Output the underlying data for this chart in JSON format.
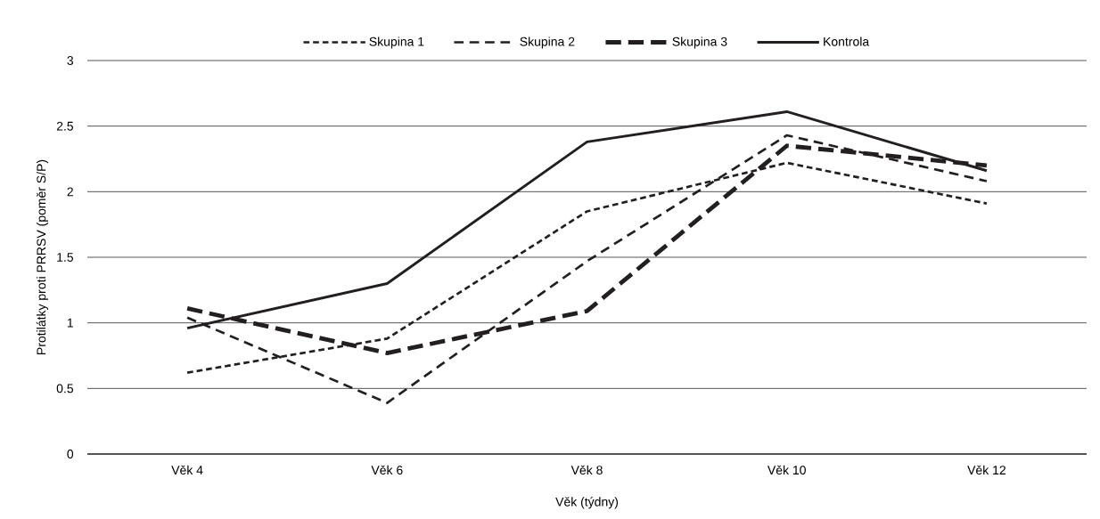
{
  "chart_data": {
    "type": "line",
    "xlabel": "Věk (týdny)",
    "ylabel": "Protilátky proti PRRSV (poměr S/P)",
    "categories": [
      "Věk 4",
      "Věk 6",
      "Věk 8",
      "Věk 10",
      "Věk 12"
    ],
    "series": [
      {
        "name": "Skupina 1",
        "color": "#231f20",
        "line_style": "dotted",
        "values": [
          0.62,
          0.88,
          1.85,
          2.22,
          1.91
        ]
      },
      {
        "name": "Skupina 2",
        "color": "#231f20",
        "line_style": "dashed",
        "values": [
          1.04,
          0.39,
          1.47,
          2.43,
          2.08
        ]
      },
      {
        "name": "Skupina 3",
        "color": "#231f20",
        "line_style": "dashed",
        "values": [
          1.11,
          0.77,
          1.09,
          2.35,
          2.2
        ]
      },
      {
        "name": "Kontrola",
        "color": "#231f20",
        "line_style": "solid",
        "values": [
          0.96,
          1.3,
          2.38,
          2.61,
          2.16
        ]
      }
    ],
    "ylim": [
      0,
      3
    ],
    "yticks": [
      0,
      0.5,
      1,
      1.5,
      2,
      2.5,
      3
    ],
    "grid": "y",
    "legend": "top"
  }
}
